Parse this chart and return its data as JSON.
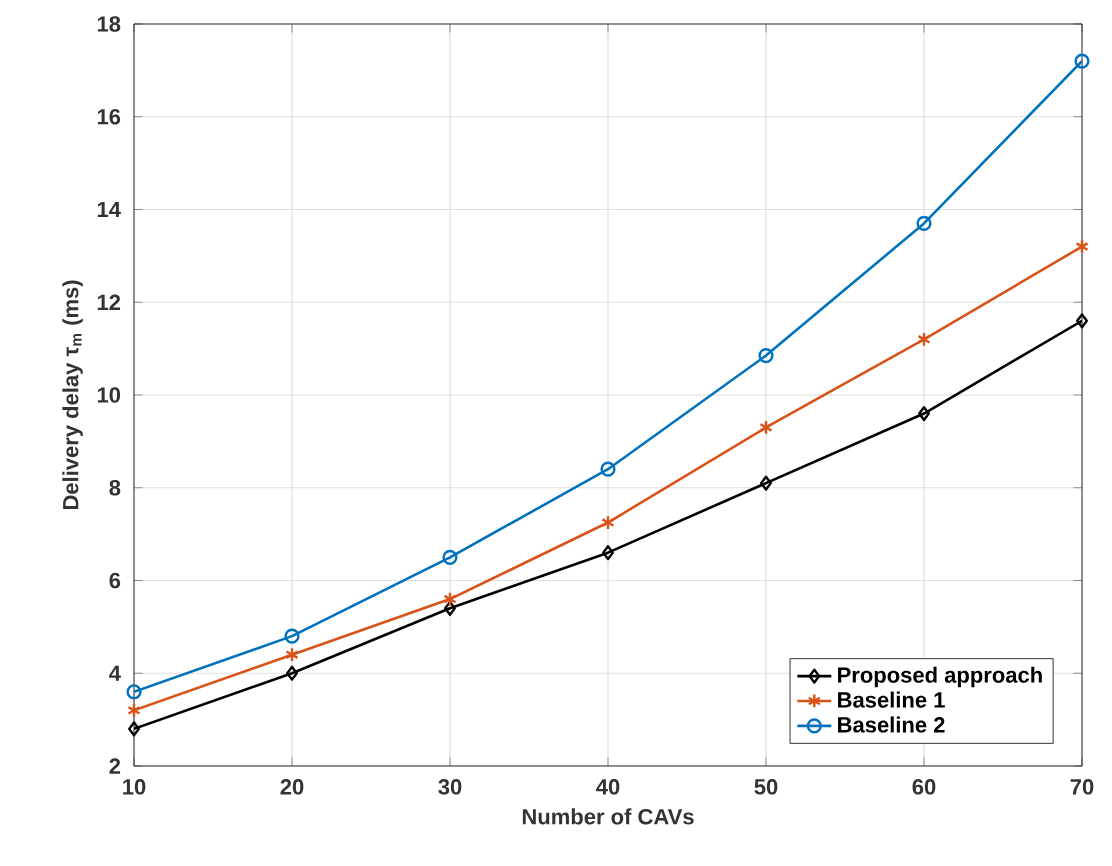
{
  "chart_data": {
    "type": "line",
    "xlabel": "Number of CAVs",
    "ylabel": "Delivery delay τ$_{m}$ (ms)",
    "x": [
      10,
      20,
      30,
      40,
      50,
      60,
      70
    ],
    "series": [
      {
        "name": "Proposed approach",
        "color": "#000000",
        "marker": "diamond",
        "values": [
          2.8,
          4.0,
          5.4,
          6.6,
          8.1,
          9.6,
          11.6
        ]
      },
      {
        "name": "Baseline 1",
        "color": "#d95319",
        "marker": "cross",
        "values": [
          3.2,
          4.4,
          5.6,
          7.25,
          9.3,
          11.2,
          13.2
        ]
      },
      {
        "name": "Baseline 2",
        "color": "#0072bd",
        "marker": "circle",
        "values": [
          3.6,
          4.8,
          6.5,
          8.4,
          10.85,
          13.7,
          17.2
        ]
      }
    ],
    "xlim": [
      10,
      70
    ],
    "ylim": [
      2,
      18
    ],
    "xticks": [
      10,
      20,
      30,
      40,
      50,
      60,
      70
    ],
    "yticks": [
      2,
      4,
      6,
      8,
      10,
      12,
      14,
      16,
      18
    ],
    "grid": true,
    "legend": "bottom right",
    "line_style": "solid"
  }
}
